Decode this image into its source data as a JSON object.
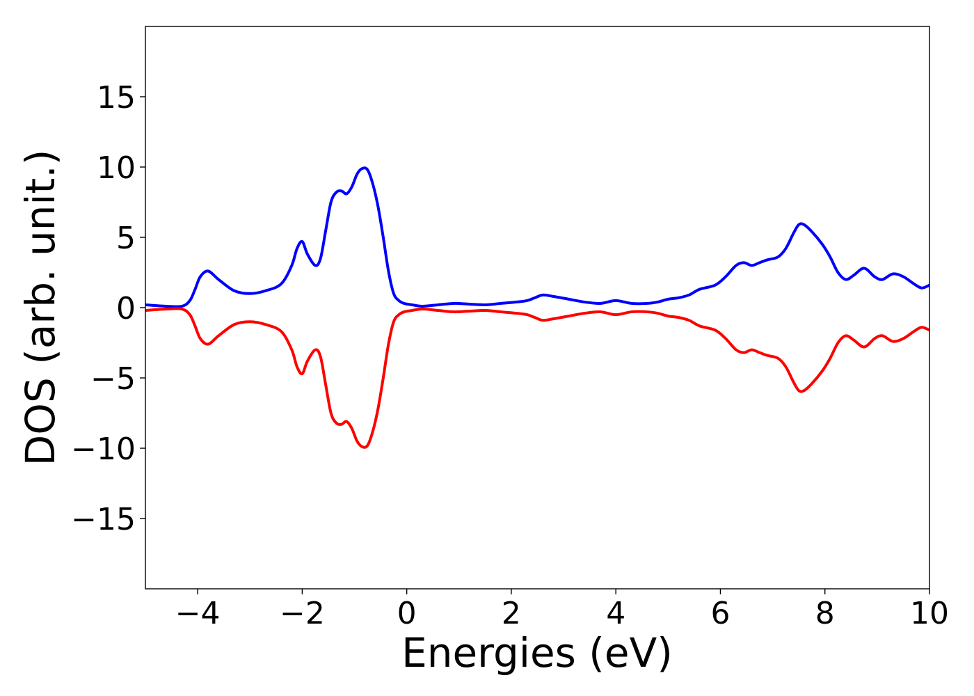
{
  "chart_data": {
    "type": "line",
    "title": "",
    "xlabel": "Energies (eV)",
    "ylabel": "DOS (arb. unit.)",
    "xlim": [
      -5,
      10
    ],
    "ylim": [
      -20,
      20
    ],
    "xticks": [
      -4,
      -2,
      0,
      2,
      4,
      6,
      8,
      10
    ],
    "xtick_labels": [
      "−4",
      "−2",
      "0",
      "2",
      "4",
      "6",
      "8",
      "10"
    ],
    "yticks": [
      -15,
      -10,
      -5,
      0,
      5,
      10,
      15
    ],
    "ytick_labels": [
      "−15",
      "−10",
      "−5",
      "0",
      "5",
      "10",
      "15"
    ],
    "grid": false,
    "legend": "none",
    "series": [
      {
        "color": "#0000ff",
        "x": [
          -5.0,
          -4.6,
          -4.3,
          -4.15,
          -4.05,
          -3.95,
          -3.8,
          -3.6,
          -3.3,
          -3.0,
          -2.7,
          -2.4,
          -2.2,
          -2.1,
          -2.0,
          -1.9,
          -1.75,
          -1.65,
          -1.55,
          -1.45,
          -1.35,
          -1.25,
          -1.15,
          -1.05,
          -0.95,
          -0.85,
          -0.75,
          -0.65,
          -0.55,
          -0.45,
          -0.35,
          -0.25,
          -0.15,
          -0.05,
          0.1,
          0.3,
          0.6,
          0.9,
          1.2,
          1.5,
          1.8,
          2.1,
          2.3,
          2.45,
          2.6,
          2.8,
          3.1,
          3.4,
          3.7,
          4.0,
          4.3,
          4.6,
          4.8,
          5.0,
          5.2,
          5.4,
          5.6,
          5.9,
          6.1,
          6.3,
          6.45,
          6.6,
          6.75,
          6.9,
          7.1,
          7.25,
          7.4,
          7.5,
          7.6,
          7.75,
          7.95,
          8.1,
          8.25,
          8.4,
          8.55,
          8.75,
          8.95,
          9.1,
          9.3,
          9.5,
          9.7,
          9.85,
          10.0
        ],
        "y": [
          0.2,
          0.1,
          0.1,
          0.5,
          1.3,
          2.2,
          2.6,
          2.0,
          1.2,
          1.0,
          1.2,
          1.7,
          3.0,
          4.2,
          4.7,
          3.8,
          3.0,
          3.5,
          5.5,
          7.5,
          8.2,
          8.3,
          8.1,
          8.6,
          9.5,
          9.9,
          9.8,
          8.8,
          7.2,
          5.0,
          2.6,
          1.0,
          0.5,
          0.3,
          0.2,
          0.1,
          0.2,
          0.3,
          0.25,
          0.2,
          0.3,
          0.4,
          0.5,
          0.7,
          0.9,
          0.8,
          0.6,
          0.4,
          0.3,
          0.5,
          0.3,
          0.3,
          0.4,
          0.6,
          0.7,
          0.9,
          1.3,
          1.6,
          2.2,
          3.0,
          3.2,
          3.0,
          3.2,
          3.4,
          3.6,
          4.2,
          5.3,
          5.9,
          5.9,
          5.4,
          4.5,
          3.6,
          2.5,
          2.0,
          2.3,
          2.8,
          2.2,
          2.0,
          2.4,
          2.2,
          1.7,
          1.4,
          1.6
        ]
      },
      {
        "color": "#ff0000",
        "x": [
          -5.0,
          -4.6,
          -4.3,
          -4.15,
          -4.05,
          -3.95,
          -3.8,
          -3.6,
          -3.3,
          -3.0,
          -2.7,
          -2.4,
          -2.2,
          -2.1,
          -2.0,
          -1.9,
          -1.75,
          -1.65,
          -1.55,
          -1.45,
          -1.35,
          -1.25,
          -1.15,
          -1.05,
          -0.95,
          -0.85,
          -0.75,
          -0.65,
          -0.55,
          -0.45,
          -0.35,
          -0.25,
          -0.15,
          -0.05,
          0.1,
          0.3,
          0.6,
          0.9,
          1.2,
          1.5,
          1.8,
          2.1,
          2.3,
          2.45,
          2.6,
          2.8,
          3.1,
          3.4,
          3.7,
          4.0,
          4.3,
          4.6,
          4.8,
          5.0,
          5.2,
          5.4,
          5.6,
          5.9,
          6.1,
          6.3,
          6.45,
          6.6,
          6.75,
          6.9,
          7.1,
          7.25,
          7.4,
          7.5,
          7.6,
          7.75,
          7.95,
          8.1,
          8.25,
          8.4,
          8.55,
          8.75,
          8.95,
          9.1,
          9.3,
          9.5,
          9.7,
          9.85,
          10.0
        ],
        "y": [
          -0.2,
          -0.1,
          -0.1,
          -0.5,
          -1.3,
          -2.2,
          -2.6,
          -2.0,
          -1.2,
          -1.0,
          -1.2,
          -1.7,
          -3.0,
          -4.2,
          -4.7,
          -3.8,
          -3.0,
          -3.5,
          -5.5,
          -7.5,
          -8.2,
          -8.3,
          -8.1,
          -8.6,
          -9.5,
          -9.9,
          -9.8,
          -8.8,
          -7.2,
          -5.0,
          -2.6,
          -1.0,
          -0.5,
          -0.3,
          -0.2,
          -0.1,
          -0.2,
          -0.3,
          -0.25,
          -0.2,
          -0.3,
          -0.4,
          -0.5,
          -0.7,
          -0.9,
          -0.8,
          -0.6,
          -0.4,
          -0.3,
          -0.5,
          -0.3,
          -0.3,
          -0.4,
          -0.6,
          -0.7,
          -0.9,
          -1.3,
          -1.6,
          -2.2,
          -3.0,
          -3.2,
          -3.0,
          -3.2,
          -3.4,
          -3.6,
          -4.2,
          -5.3,
          -5.9,
          -5.9,
          -5.4,
          -4.5,
          -3.6,
          -2.5,
          -2.0,
          -2.3,
          -2.8,
          -2.2,
          -2.0,
          -2.4,
          -2.2,
          -1.7,
          -1.4,
          -1.6
        ]
      }
    ]
  }
}
